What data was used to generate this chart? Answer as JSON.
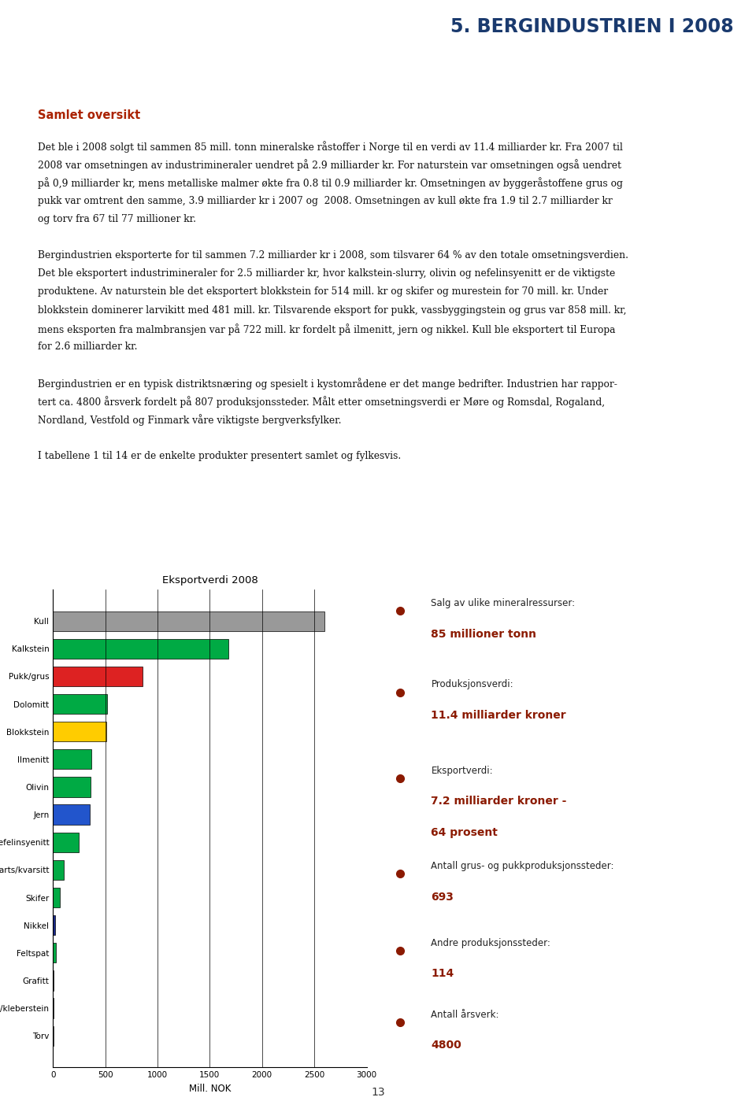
{
  "page_title": "5. BERGINDUSTRIEN I 2008",
  "page_title_color": "#1a3a6e",
  "section_header": "Samlet oversikt",
  "section_header_color": "#aa2200",
  "body_paragraphs": [
    "Det ble i 2008 solgt til sammen 85 mill. tonn mineralske råstoffer i Norge til en verdi av 11.4 milliarder kr. Fra 2007 til 2008 var omsetningen av industrimineraler uendret på 2.9 milliarder kr. For naturstein var omsetningen også uendret på 0,9 milliarder kr, mens metalliske malmer økte fra 0.8 til 0.9 milliarder kr. Omsetningen av byggeråstoffene grus og pukk var omtrent den samme, 3.9 milliarder kr i 2007 og  2008. Omsetningen av kull økte fra 1.9 til 2.7 milliarder kr og torv fra 67 til 77 millioner kr.",
    "Bergindustrien eksporterte for til sammen 7.2 milliarder kr i 2008, som tilsvarer 64 % av den totale omsetningsverdien. Det ble eksportert industrimineraler for 2.5 milliarder kr, hvor kalkstein-slurry, olivin og nefelinsyenitt er de viktigste produktene. Av naturstein ble det eksportert blokkstein for 514 mill. kr og skifer og murestein for 70 mill. kr. Under blokkstein dominerer larvikitt med 481 mill. kr. Tilsvarende eksport for pukk, vassbyggingstein og grus var 858 mill. kr, mens eksporten fra malmbransjen var på 722 mill. kr fordelt på ilmenitt, jern og nikkel. Kull ble eksportert til Europa for 2.6 milliarder kr.",
    "Bergindustrien er en typisk distriktsnæring og spesielt i kystområdene er det mange bedrifter. Industrien har rapportert ca. 4800 årsverk fordelt på 807 produksjonssteder. Målt etter omsetningsverdi er Møre og Romsdal, Rogaland, Nordland, Vestfold og Finmark våre viktigste bergverksfylker.",
    "I tabellene 1 til 14 er de enkelte produkter presentert samlet og fylkesvis."
  ],
  "chart_title": "Eksportverdi 2008",
  "chart_categories": [
    "Kull",
    "Kalkstein",
    "Pukk/grus",
    "Dolomitt",
    "Blokkstein",
    "Ilmenitt",
    "Olivin",
    "Jern",
    "Nefelinsyenitt",
    "Kvarts/kvarsitt",
    "Skifer",
    "Nikkel",
    "Feltspat",
    "Grafitt",
    "Talk/kleberstein",
    "Torv"
  ],
  "chart_values": [
    2600,
    1680,
    858,
    520,
    510,
    370,
    360,
    350,
    245,
    105,
    65,
    18,
    28,
    8,
    5,
    3
  ],
  "chart_colors": [
    "#999999",
    "#00aa44",
    "#dd2222",
    "#00aa44",
    "#ffcc00",
    "#00aa44",
    "#00aa44",
    "#2255cc",
    "#00aa44",
    "#00aa44",
    "#00aa44",
    "#1a2a8a",
    "#00aa44",
    "#444444",
    "#777777",
    "#cccccc"
  ],
  "chart_xlabel": "Mill. NOK",
  "chart_xlim": [
    0,
    3000
  ],
  "chart_xticks": [
    0,
    500,
    1000,
    1500,
    2000,
    2500,
    3000
  ],
  "info_items": [
    {
      "label": "Salg av ulike mineralressurser:",
      "value": "85 millioner tonn"
    },
    {
      "label": "Produksjonsverdi:",
      "value": "11.4 milliarder kroner"
    },
    {
      "label": "Eksportverdi:",
      "value": "7.2 milliarder kroner -\n64 prosent"
    },
    {
      "label": "Antall grus- og pukkproduksjonssteder:",
      "value": "693"
    },
    {
      "label": "Andre produksjonssteder:",
      "value": "114"
    },
    {
      "label": "Antall årsverk:",
      "value": "4800"
    }
  ],
  "info_label_color": "#222222",
  "info_value_color": "#8B1A00",
  "bullet_color": "#8B1A00",
  "page_number": "13",
  "background_color": "#ffffff"
}
